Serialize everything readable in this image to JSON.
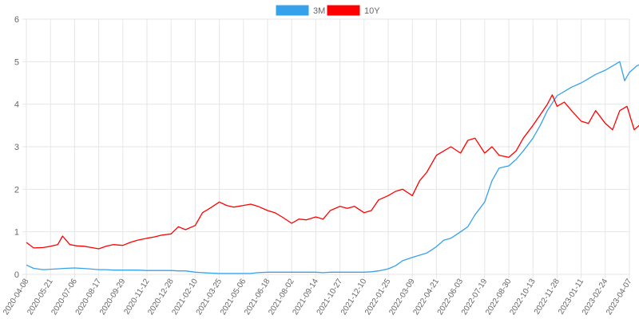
{
  "chart_data": {
    "type": "line",
    "title": "",
    "xlabel": "",
    "ylabel": "",
    "ylim": [
      0,
      6
    ],
    "yticks": [
      0,
      1,
      2,
      3,
      4,
      5,
      6
    ],
    "grid": true,
    "legend_position": "top-center",
    "x_tick_labels": [
      "2020-04-08",
      "2020-05-21",
      "2020-07-06",
      "2020-08-17",
      "2020-09-29",
      "2020-11-12",
      "2020-12-28",
      "2021-02-10",
      "2021-03-25",
      "2021-05-06",
      "2021-06-18",
      "2021-08-02",
      "2021-09-14",
      "2021-10-27",
      "2021-12-10",
      "2022-01-25",
      "2022-03-09",
      "2022-04-21",
      "2022-06-03",
      "2022-07-19",
      "2022-08-30",
      "2022-10-13",
      "2022-11-28",
      "2023-01-11",
      "2023-02-24",
      "2023-04-07"
    ],
    "series": [
      {
        "name": "3M",
        "color": "#36a2eb",
        "points": [
          [
            0,
            0.22
          ],
          [
            0.3,
            0.14
          ],
          [
            0.7,
            0.11
          ],
          [
            1,
            0.12
          ],
          [
            1.3,
            0.13
          ],
          [
            1.6,
            0.14
          ],
          [
            2,
            0.15
          ],
          [
            2.3,
            0.14
          ],
          [
            2.6,
            0.13
          ],
          [
            3,
            0.11
          ],
          [
            3.3,
            0.11
          ],
          [
            3.6,
            0.1
          ],
          [
            4,
            0.1
          ],
          [
            4.3,
            0.1
          ],
          [
            4.6,
            0.1
          ],
          [
            5,
            0.09
          ],
          [
            5.3,
            0.09
          ],
          [
            5.6,
            0.09
          ],
          [
            6,
            0.09
          ],
          [
            6.3,
            0.08
          ],
          [
            6.6,
            0.08
          ],
          [
            7,
            0.05
          ],
          [
            7.3,
            0.04
          ],
          [
            7.6,
            0.03
          ],
          [
            8,
            0.02
          ],
          [
            8.3,
            0.02
          ],
          [
            8.6,
            0.02
          ],
          [
            9,
            0.02
          ],
          [
            9.3,
            0.02
          ],
          [
            9.6,
            0.04
          ],
          [
            10,
            0.05
          ],
          [
            10.3,
            0.05
          ],
          [
            10.6,
            0.05
          ],
          [
            11,
            0.05
          ],
          [
            11.3,
            0.05
          ],
          [
            11.6,
            0.05
          ],
          [
            12,
            0.05
          ],
          [
            12.3,
            0.04
          ],
          [
            12.6,
            0.05
          ],
          [
            13,
            0.05
          ],
          [
            13.3,
            0.05
          ],
          [
            13.6,
            0.05
          ],
          [
            14,
            0.05
          ],
          [
            14.3,
            0.06
          ],
          [
            14.6,
            0.08
          ],
          [
            15,
            0.13
          ],
          [
            15.3,
            0.2
          ],
          [
            15.6,
            0.32
          ],
          [
            16,
            0.4
          ],
          [
            16.3,
            0.45
          ],
          [
            16.6,
            0.5
          ],
          [
            17,
            0.65
          ],
          [
            17.3,
            0.8
          ],
          [
            17.6,
            0.85
          ],
          [
            18,
            1.0
          ],
          [
            18.3,
            1.12
          ],
          [
            18.6,
            1.4
          ],
          [
            19,
            1.7
          ],
          [
            19.3,
            2.2
          ],
          [
            19.6,
            2.5
          ],
          [
            20,
            2.55
          ],
          [
            20.3,
            2.7
          ],
          [
            20.6,
            2.9
          ],
          [
            21,
            3.2
          ],
          [
            21.3,
            3.5
          ],
          [
            21.6,
            3.85
          ],
          [
            22,
            4.2
          ],
          [
            22.3,
            4.3
          ],
          [
            22.6,
            4.4
          ],
          [
            23,
            4.5
          ],
          [
            23.3,
            4.6
          ],
          [
            23.6,
            4.7
          ],
          [
            24,
            4.8
          ],
          [
            24.3,
            4.9
          ],
          [
            24.6,
            5.0
          ],
          [
            24.8,
            4.55
          ],
          [
            25,
            4.75
          ],
          [
            25.3,
            4.9
          ],
          [
            25.5,
            4.95
          ]
        ]
      },
      {
        "name": "10Y",
        "color": "#ff0000",
        "points": [
          [
            0,
            0.75
          ],
          [
            0.3,
            0.62
          ],
          [
            0.7,
            0.63
          ],
          [
            1,
            0.66
          ],
          [
            1.3,
            0.7
          ],
          [
            1.5,
            0.9
          ],
          [
            1.8,
            0.7
          ],
          [
            2.1,
            0.67
          ],
          [
            2.4,
            0.66
          ],
          [
            2.7,
            0.63
          ],
          [
            3,
            0.6
          ],
          [
            3.3,
            0.66
          ],
          [
            3.6,
            0.7
          ],
          [
            4,
            0.68
          ],
          [
            4.3,
            0.75
          ],
          [
            4.6,
            0.8
          ],
          [
            5,
            0.85
          ],
          [
            5.3,
            0.88
          ],
          [
            5.6,
            0.92
          ],
          [
            6,
            0.95
          ],
          [
            6.3,
            1.12
          ],
          [
            6.6,
            1.05
          ],
          [
            7,
            1.15
          ],
          [
            7.3,
            1.45
          ],
          [
            7.6,
            1.55
          ],
          [
            8,
            1.7
          ],
          [
            8.3,
            1.62
          ],
          [
            8.6,
            1.58
          ],
          [
            9,
            1.62
          ],
          [
            9.3,
            1.65
          ],
          [
            9.6,
            1.6
          ],
          [
            10,
            1.5
          ],
          [
            10.3,
            1.45
          ],
          [
            10.6,
            1.35
          ],
          [
            11,
            1.2
          ],
          [
            11.3,
            1.3
          ],
          [
            11.6,
            1.28
          ],
          [
            12,
            1.35
          ],
          [
            12.3,
            1.3
          ],
          [
            12.6,
            1.5
          ],
          [
            13,
            1.6
          ],
          [
            13.3,
            1.55
          ],
          [
            13.6,
            1.6
          ],
          [
            14,
            1.45
          ],
          [
            14.3,
            1.5
          ],
          [
            14.6,
            1.75
          ],
          [
            15,
            1.85
          ],
          [
            15.3,
            1.95
          ],
          [
            15.6,
            2.0
          ],
          [
            16,
            1.85
          ],
          [
            16.3,
            2.2
          ],
          [
            16.6,
            2.4
          ],
          [
            17,
            2.8
          ],
          [
            17.3,
            2.9
          ],
          [
            17.6,
            3.0
          ],
          [
            18,
            2.85
          ],
          [
            18.3,
            3.15
          ],
          [
            18.6,
            3.2
          ],
          [
            19,
            2.85
          ],
          [
            19.3,
            3.0
          ],
          [
            19.6,
            2.8
          ],
          [
            20,
            2.75
          ],
          [
            20.3,
            2.9
          ],
          [
            20.6,
            3.2
          ],
          [
            21,
            3.5
          ],
          [
            21.3,
            3.75
          ],
          [
            21.6,
            4.0
          ],
          [
            21.8,
            4.22
          ],
          [
            22,
            3.95
          ],
          [
            22.3,
            4.05
          ],
          [
            22.6,
            3.85
          ],
          [
            23,
            3.6
          ],
          [
            23.3,
            3.55
          ],
          [
            23.6,
            3.85
          ],
          [
            24,
            3.55
          ],
          [
            24.3,
            3.4
          ],
          [
            24.6,
            3.85
          ],
          [
            24.9,
            3.95
          ],
          [
            25.2,
            3.4
          ],
          [
            25.4,
            3.5
          ],
          [
            25.5,
            3.4
          ]
        ]
      }
    ]
  }
}
